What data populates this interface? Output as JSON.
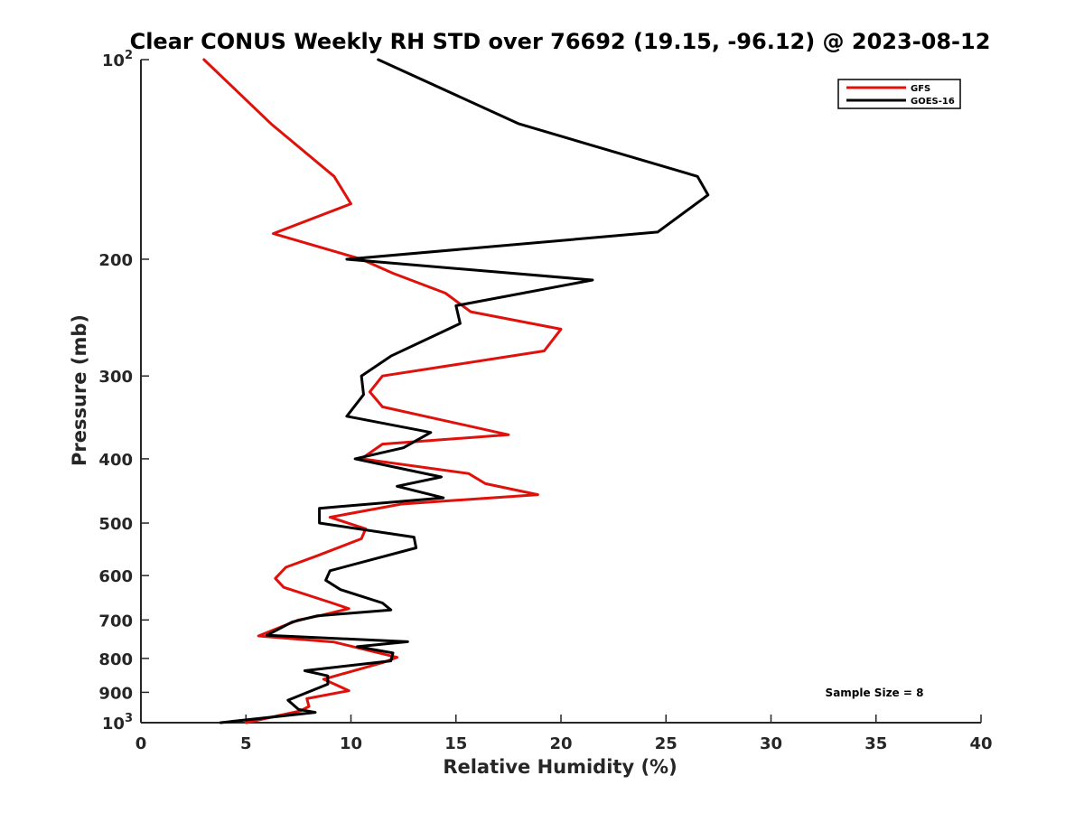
{
  "chart_data": {
    "type": "line",
    "title": "Clear CONUS Weekly RH STD over 76692 (19.15, -96.12) @ 2023-08-12",
    "xlabel": "Relative Humidity (%)",
    "ylabel": "Pressure (mb)",
    "xlim": [
      0,
      40
    ],
    "ylim": [
      100,
      1000
    ],
    "yscale": "log",
    "y_reversed": true,
    "x_ticks": [
      0,
      5,
      10,
      15,
      20,
      25,
      30,
      35,
      40
    ],
    "x_tick_labels": [
      "0",
      "5",
      "10",
      "15",
      "20",
      "25",
      "30",
      "35",
      "40"
    ],
    "y_ticks": [
      {
        "value": 100,
        "base": "10",
        "exp": "2"
      },
      {
        "value": 200,
        "label": "200"
      },
      {
        "value": 300,
        "label": "300"
      },
      {
        "value": 400,
        "label": "400"
      },
      {
        "value": 500,
        "label": "500"
      },
      {
        "value": 600,
        "label": "600"
      },
      {
        "value": 700,
        "label": "700"
      },
      {
        "value": 800,
        "label": "800"
      },
      {
        "value": 900,
        "label": "900"
      },
      {
        "value": 1000,
        "base": "10",
        "exp": "3"
      }
    ],
    "legend": {
      "position": "top-right",
      "entries": [
        "GFS",
        "GOES-16"
      ]
    },
    "annotation": "Sample Size = 8",
    "series": [
      {
        "name": "GFS",
        "color": "#e0110b",
        "points": [
          [
            3.0,
            100
          ],
          [
            6.2,
            125
          ],
          [
            9.2,
            150
          ],
          [
            10.0,
            165
          ],
          [
            6.3,
            183
          ],
          [
            10.5,
            200
          ],
          [
            12.0,
            210
          ],
          [
            14.5,
            225
          ],
          [
            15.7,
            240
          ],
          [
            20.0,
            255
          ],
          [
            19.2,
            275
          ],
          [
            11.5,
            300
          ],
          [
            10.9,
            317
          ],
          [
            11.5,
            334
          ],
          [
            17.5,
            368
          ],
          [
            11.5,
            380
          ],
          [
            10.5,
            400
          ],
          [
            15.6,
            421
          ],
          [
            16.4,
            436
          ],
          [
            18.9,
            453
          ],
          [
            12.4,
            468
          ],
          [
            9.0,
            490
          ],
          [
            10.7,
            510
          ],
          [
            10.5,
            528
          ],
          [
            8.4,
            560
          ],
          [
            6.9,
            583
          ],
          [
            6.4,
            606
          ],
          [
            6.8,
            625
          ],
          [
            9.1,
            660
          ],
          [
            9.9,
            673
          ],
          [
            8.5,
            690
          ],
          [
            7.5,
            700
          ],
          [
            5.6,
            740
          ],
          [
            9.2,
            756
          ],
          [
            12.2,
            797
          ],
          [
            11.5,
            812
          ],
          [
            8.7,
            860
          ],
          [
            9.9,
            895
          ],
          [
            7.9,
            920
          ],
          [
            8.0,
            945
          ],
          [
            7.6,
            960
          ],
          [
            5.0,
            1000
          ]
        ]
      },
      {
        "name": "GOES-16",
        "color": "#000000",
        "points": [
          [
            11.3,
            100
          ],
          [
            18.0,
            125
          ],
          [
            26.5,
            150
          ],
          [
            27.0,
            160
          ],
          [
            24.6,
            182
          ],
          [
            9.8,
            200
          ],
          [
            21.5,
            215
          ],
          [
            15.0,
            235
          ],
          [
            15.2,
            250
          ],
          [
            11.9,
            280
          ],
          [
            10.5,
            300
          ],
          [
            10.6,
            320
          ],
          [
            9.8,
            345
          ],
          [
            13.8,
            365
          ],
          [
            12.5,
            385
          ],
          [
            10.2,
            400
          ],
          [
            14.3,
            426
          ],
          [
            12.2,
            440
          ],
          [
            14.4,
            458
          ],
          [
            8.5,
            475
          ],
          [
            8.5,
            500
          ],
          [
            13.0,
            525
          ],
          [
            13.1,
            545
          ],
          [
            9.0,
            590
          ],
          [
            8.8,
            610
          ],
          [
            9.5,
            630
          ],
          [
            11.5,
            660
          ],
          [
            11.9,
            676
          ],
          [
            8.4,
            690
          ],
          [
            7.2,
            705
          ],
          [
            6.0,
            738
          ],
          [
            12.7,
            755
          ],
          [
            10.3,
            768
          ],
          [
            12.0,
            785
          ],
          [
            11.9,
            807
          ],
          [
            7.8,
            835
          ],
          [
            8.9,
            850
          ],
          [
            8.9,
            875
          ],
          [
            7.0,
            925
          ],
          [
            7.5,
            955
          ],
          [
            8.3,
            965
          ],
          [
            3.8,
            1000
          ]
        ]
      }
    ]
  }
}
